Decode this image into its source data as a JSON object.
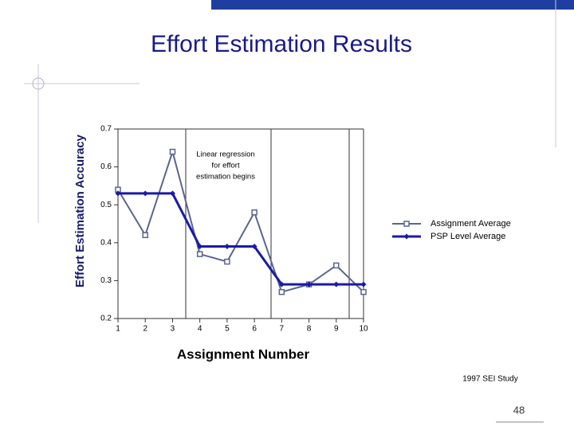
{
  "chart_data": {
    "type": "line",
    "title": "Effort Estimation Results",
    "x_label": "Assignment Number",
    "y_label": "Effort Estimation Accuracy",
    "annotation": [
      "Linear regression",
      "for effort",
      "estimation begins"
    ],
    "x": [
      1,
      2,
      3,
      4,
      5,
      6,
      7,
      8,
      9,
      10
    ],
    "xlim": [
      1,
      10
    ],
    "xticks": [
      1,
      2,
      3,
      4,
      5,
      6,
      7,
      8,
      9,
      10
    ],
    "ylim": [
      0.2,
      0.7
    ],
    "yticks": [
      0.2,
      0.3,
      0.4,
      0.5,
      0.6,
      0.7
    ],
    "legend": "right",
    "series": [
      {
        "name": "Assignment Average",
        "color": "#5b6490",
        "marker": "square",
        "values": [
          0.54,
          0.42,
          0.64,
          0.37,
          0.35,
          0.48,
          0.27,
          0.29,
          0.34,
          0.27
        ]
      },
      {
        "name": "PSP Level Average",
        "color": "#1a1aa8",
        "marker": "diamond",
        "values": [
          0.53,
          0.53,
          0.53,
          0.39,
          0.39,
          0.39,
          0.29,
          0.29,
          0.29,
          0.29
        ]
      }
    ]
  },
  "slide": {
    "source": "1997 SEI Study",
    "number": "48"
  }
}
